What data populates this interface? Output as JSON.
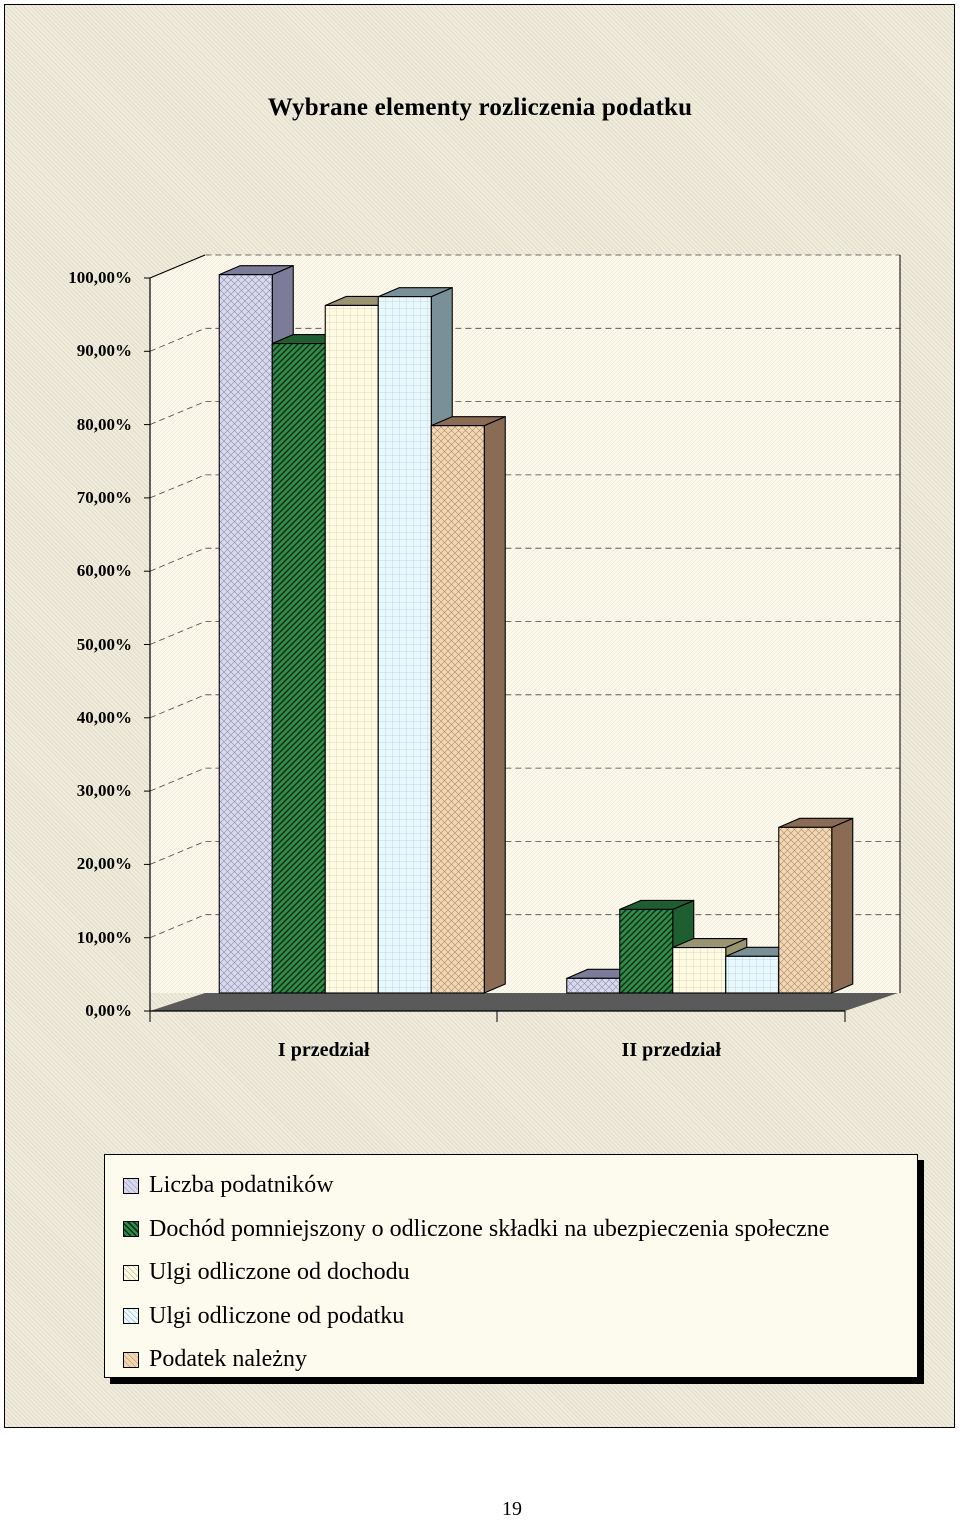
{
  "chart_data": {
    "type": "bar",
    "title": "Wybrane elementy rozliczenia podatku",
    "categories": [
      "I przedział",
      "II przedział"
    ],
    "series": [
      {
        "name": "Liczba podatników",
        "values": [
          98.0,
          2.0
        ],
        "color": "#d8d8f0",
        "shade": "#7c7c9a"
      },
      {
        "name": "Dochód pomniejszony o odliczone składki na ubezpieczenia społeczne",
        "values": [
          88.6,
          11.4
        ],
        "color": "#2e8b4a",
        "shade": "#1e5e30"
      },
      {
        "name": "Ulgi odliczone od dochodu",
        "values": [
          93.8,
          6.2
        ],
        "color": "#fffbe2",
        "shade": "#9a9470"
      },
      {
        "name": "Ulgi odliczone od podatku",
        "values": [
          95.0,
          5.0
        ],
        "color": "#e8f8ff",
        "shade": "#7a9098"
      },
      {
        "name": "Podatek należny",
        "values": [
          77.4,
          22.6
        ],
        "color": "#f4d6b0",
        "shade": "#8a6c54"
      }
    ],
    "yticks": [
      "0,00%",
      "10,00%",
      "20,00%",
      "30,00%",
      "40,00%",
      "50,00%",
      "60,00%",
      "70,00%",
      "80,00%",
      "90,00%",
      "100,00%"
    ],
    "ylim": [
      0,
      100
    ],
    "xlabel": "",
    "ylabel": "",
    "grid": true,
    "legend": "bottom",
    "projection": "3d-clustered-column"
  },
  "page_number": "19"
}
